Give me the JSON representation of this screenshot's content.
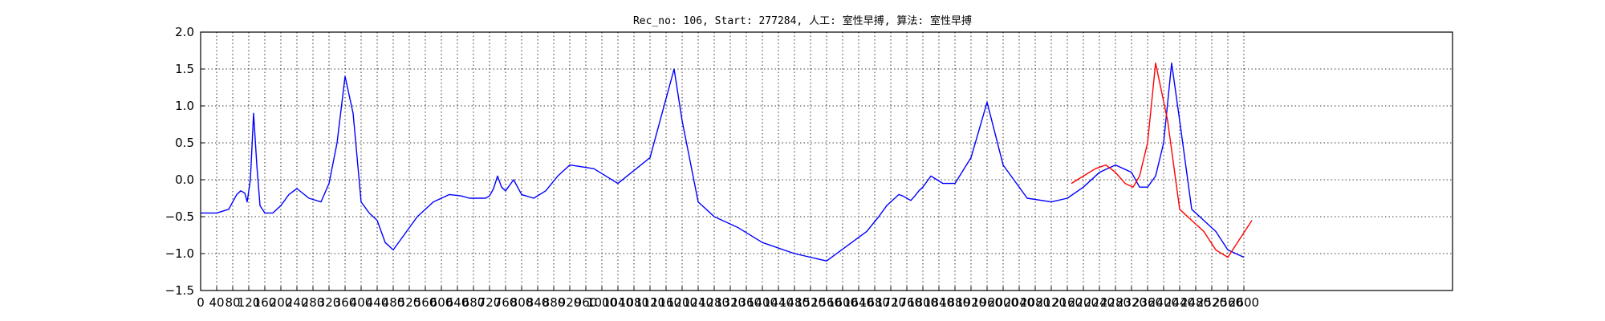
{
  "chart_data": {
    "type": "line",
    "title": "Rec_no: 106, Start: 277284, 人工: 室性早搏, 算法: 室性早搏",
    "xlabel": "",
    "ylabel": "",
    "xlim": [
      0,
      1560
    ],
    "ylim": [
      -1.5,
      2.0
    ],
    "x_tick_step": 20,
    "x_tick_labels": [
      "0",
      "40",
      "80",
      "120",
      "160",
      "200",
      "240",
      "280",
      "320",
      "360",
      "400",
      "440",
      "480",
      "520",
      "560",
      "600",
      "640",
      "680",
      "720",
      "760",
      "800",
      "840",
      "880",
      "920",
      "960",
      "1000",
      "1040",
      "1080",
      "1120",
      "1160",
      "1200",
      "1240",
      "1280",
      "1320",
      "1360",
      "1400",
      "1440",
      "1480",
      "1520",
      "1560",
      "1600",
      "1640",
      "1680",
      "1720",
      "1760",
      "1800",
      "1840",
      "1880",
      "1920",
      "1960",
      "2000",
      "2040",
      "2080",
      "2120",
      "2160",
      "2200",
      "2240",
      "2280",
      "2320",
      "2360",
      "2400",
      "2440",
      "2480",
      "2520",
      "2560",
      "2600"
    ],
    "y_ticks": [
      -1.5,
      -1.0,
      -0.5,
      0.0,
      0.5,
      1.0,
      1.5,
      2.0
    ],
    "y_tick_labels": [
      "−1.5",
      "−1.0",
      "−0.5",
      "0.0",
      "0.5",
      "1.0",
      "1.5",
      "2.0"
    ],
    "grid": true,
    "grid_style": "dotted",
    "colors": {
      "series_blue": "#0000ff",
      "series_red": "#ff0000",
      "grid": "#000000"
    },
    "series": [
      {
        "color": "#0000ff",
        "x": [
          0,
          20,
          35,
          40,
          45,
          50,
          55,
          58,
          62,
          66,
          70,
          74,
          80,
          90,
          100,
          110,
          120,
          135,
          150,
          160,
          170,
          180,
          190,
          200,
          210,
          220,
          230,
          240,
          250,
          270,
          290,
          310,
          325,
          335,
          345,
          355,
          360,
          365,
          370,
          375,
          380,
          390,
          400,
          415,
          430,
          445,
          460,
          490,
          520,
          560,
          590,
          600,
          620,
          640,
          670,
          700,
          740,
          780,
          830,
          845,
          855,
          865,
          870,
          875,
          880,
          885,
          890,
          895,
          900,
          910,
          925,
          940,
          960,
          980,
          1000,
          1030,
          1060,
          1080,
          1100,
          1120,
          1140,
          1160,
          1170,
          1180,
          1190,
          1200,
          1210,
          1220,
          1235,
          1250,
          1265,
          1280,
          1300
        ],
        "y": [
          -0.45,
          -0.45,
          -0.4,
          -0.3,
          -0.2,
          -0.15,
          -0.18,
          -0.3,
          0.0,
          0.9,
          0.2,
          -0.35,
          -0.45,
          -0.45,
          -0.35,
          -0.2,
          -0.12,
          -0.25,
          -0.3,
          -0.05,
          0.5,
          1.4,
          0.9,
          -0.3,
          -0.45,
          -0.55,
          -0.85,
          -0.95,
          -0.8,
          -0.5,
          -0.3,
          -0.2,
          -0.22,
          -0.25,
          -0.25,
          -0.25,
          -0.22,
          -0.12,
          0.05,
          -0.1,
          -0.15,
          0.0,
          -0.2,
          -0.25,
          -0.15,
          0.05,
          0.2,
          0.15,
          -0.05,
          0.3,
          1.5,
          0.8,
          -0.3,
          -0.5,
          -0.65,
          -0.85,
          -1.0,
          -1.1,
          -0.7,
          -0.5,
          -0.35,
          -0.25,
          -0.2,
          -0.22,
          -0.25,
          -0.28,
          -0.22,
          -0.15,
          -0.1,
          0.05,
          -0.05,
          -0.05,
          0.3,
          1.05,
          0.2,
          -0.25,
          -0.3,
          -0.25,
          -0.1,
          0.1,
          0.2,
          0.1,
          -0.1,
          -0.1,
          0.05,
          0.5,
          1.58,
          0.8,
          -0.4,
          -0.55,
          -0.7,
          -0.95,
          -1.05
        ]
      },
      {
        "color": "#ff0000",
        "x": [
          1085,
          1100,
          1115,
          1128,
          1140,
          1152,
          1162,
          1170,
          1180,
          1190,
          1205,
          1220,
          1235,
          1250,
          1265,
          1280,
          1295,
          1310
        ],
        "y": [
          -0.05,
          0.05,
          0.15,
          0.2,
          0.1,
          -0.05,
          -0.1,
          0.05,
          0.5,
          1.58,
          0.8,
          -0.4,
          -0.55,
          -0.7,
          -0.95,
          -1.05,
          -0.8,
          -0.55
        ]
      }
    ]
  }
}
